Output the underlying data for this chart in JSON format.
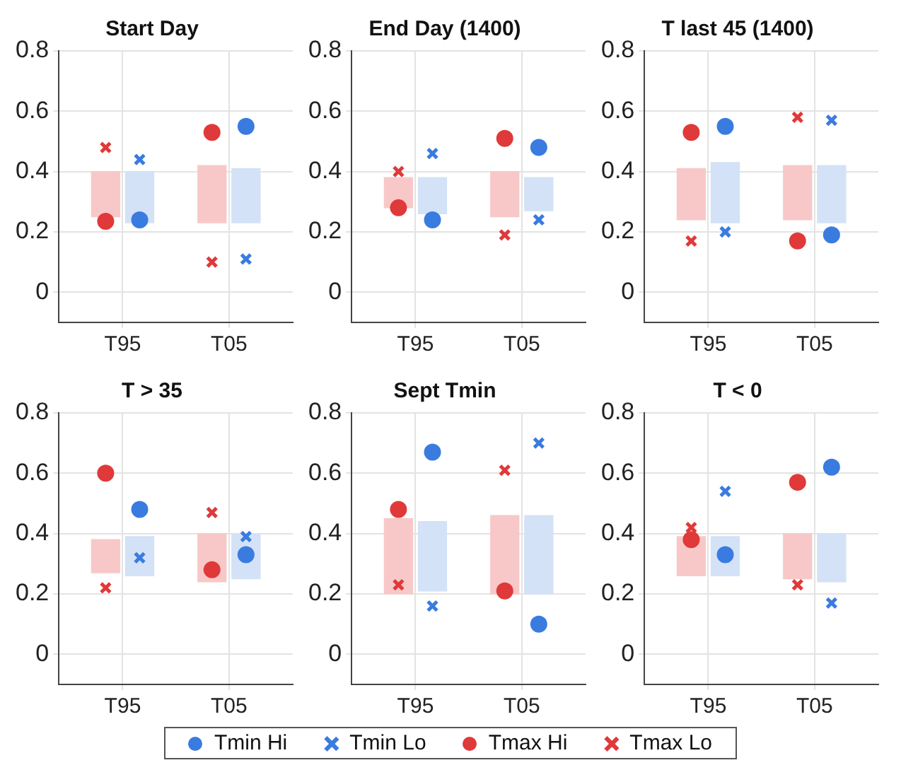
{
  "chart_data": [
    {
      "type": "bar",
      "title": "Start Day",
      "categories": [
        "T95",
        "T05"
      ],
      "ylim": [
        -0.1,
        0.8
      ],
      "yticks": [
        0,
        0.2,
        0.4,
        0.6,
        0.8
      ],
      "grid": true,
      "legend": "bottom",
      "series": [
        {
          "color": "#f8c8c8",
          "base": [
            0.25,
            0.23
          ],
          "values": [
            0.15,
            0.19
          ]
        },
        {
          "color": "#d3e2f6",
          "base": [
            0.23,
            0.23
          ],
          "values": [
            0.17,
            0.18
          ]
        },
        {
          "type": "scatter",
          "name": "Tmin Hi",
          "marker": "circle",
          "color": "#3a7be0",
          "x": [
            "T95",
            "T05"
          ],
          "values": [
            0.24,
            0.55
          ]
        },
        {
          "type": "scatter",
          "name": "Tmin Lo",
          "marker": "cross",
          "color": "#3a7be0",
          "x": [
            "T95",
            "T05"
          ],
          "values": [
            0.44,
            0.11
          ]
        },
        {
          "type": "scatter",
          "name": "Tmax Hi",
          "marker": "circle",
          "color": "#e0393a",
          "x": [
            "T95",
            "T05"
          ],
          "values": [
            0.235,
            0.53
          ]
        },
        {
          "type": "scatter",
          "name": "Tmax Lo",
          "marker": "cross",
          "color": "#e0393a",
          "x": [
            "T95",
            "T05"
          ],
          "values": [
            0.48,
            0.1
          ]
        }
      ]
    },
    {
      "type": "bar",
      "title": "End Day (1400)",
      "categories": [
        "T95",
        "T05"
      ],
      "ylim": [
        -0.1,
        0.8
      ],
      "yticks": [
        0,
        0.2,
        0.4,
        0.6,
        0.8
      ],
      "grid": true,
      "legend": "bottom",
      "series": [
        {
          "color": "#f8c8c8",
          "base": [
            0.28,
            0.25
          ],
          "values": [
            0.1,
            0.15
          ]
        },
        {
          "color": "#d3e2f6",
          "base": [
            0.26,
            0.27
          ],
          "values": [
            0.12,
            0.11
          ]
        },
        {
          "type": "scatter",
          "name": "Tmin Hi",
          "marker": "circle",
          "color": "#3a7be0",
          "x": [
            "T95",
            "T05"
          ],
          "values": [
            0.24,
            0.48
          ]
        },
        {
          "type": "scatter",
          "name": "Tmin Lo",
          "marker": "cross",
          "color": "#3a7be0",
          "x": [
            "T95",
            "T05"
          ],
          "values": [
            0.46,
            0.24
          ]
        },
        {
          "type": "scatter",
          "name": "Tmax Hi",
          "marker": "circle",
          "color": "#e0393a",
          "x": [
            "T95",
            "T05"
          ],
          "values": [
            0.28,
            0.51
          ]
        },
        {
          "type": "scatter",
          "name": "Tmax Lo",
          "marker": "cross",
          "color": "#e0393a",
          "x": [
            "T95",
            "T05"
          ],
          "values": [
            0.4,
            0.19
          ]
        }
      ]
    },
    {
      "type": "bar",
      "title": "T last 45 (1400)",
      "categories": [
        "T95",
        "T05"
      ],
      "ylim": [
        -0.1,
        0.8
      ],
      "yticks": [
        0,
        0.2,
        0.4,
        0.6,
        0.8
      ],
      "grid": true,
      "legend": "bottom",
      "series": [
        {
          "color": "#f8c8c8",
          "base": [
            0.24,
            0.24
          ],
          "values": [
            0.17,
            0.18
          ]
        },
        {
          "color": "#d3e2f6",
          "base": [
            0.23,
            0.23
          ],
          "values": [
            0.2,
            0.19
          ]
        },
        {
          "type": "scatter",
          "name": "Tmin Hi",
          "marker": "circle",
          "color": "#3a7be0",
          "x": [
            "T95",
            "T05"
          ],
          "values": [
            0.55,
            0.19
          ]
        },
        {
          "type": "scatter",
          "name": "Tmin Lo",
          "marker": "cross",
          "color": "#3a7be0",
          "x": [
            "T95",
            "T05"
          ],
          "values": [
            0.2,
            0.57
          ]
        },
        {
          "type": "scatter",
          "name": "Tmax Hi",
          "marker": "circle",
          "color": "#e0393a",
          "x": [
            "T95",
            "T05"
          ],
          "values": [
            0.53,
            0.17
          ]
        },
        {
          "type": "scatter",
          "name": "Tmax Lo",
          "marker": "cross",
          "color": "#e0393a",
          "x": [
            "T95",
            "T05"
          ],
          "values": [
            0.17,
            0.58
          ]
        }
      ]
    },
    {
      "type": "bar",
      "title": "T > 35",
      "categories": [
        "T95",
        "T05"
      ],
      "ylim": [
        -0.1,
        0.8
      ],
      "yticks": [
        0,
        0.2,
        0.4,
        0.6,
        0.8
      ],
      "grid": true,
      "legend": "bottom",
      "series": [
        {
          "color": "#f8c8c8",
          "base": [
            0.27,
            0.24
          ],
          "values": [
            0.11,
            0.16
          ]
        },
        {
          "color": "#d3e2f6",
          "base": [
            0.26,
            0.25
          ],
          "values": [
            0.13,
            0.15
          ]
        },
        {
          "type": "scatter",
          "name": "Tmin Hi",
          "marker": "circle",
          "color": "#3a7be0",
          "x": [
            "T95",
            "T05"
          ],
          "values": [
            0.48,
            0.33
          ]
        },
        {
          "type": "scatter",
          "name": "Tmin Lo",
          "marker": "cross",
          "color": "#3a7be0",
          "x": [
            "T95",
            "T05"
          ],
          "values": [
            0.32,
            0.39
          ]
        },
        {
          "type": "scatter",
          "name": "Tmax Hi",
          "marker": "circle",
          "color": "#e0393a",
          "x": [
            "T95",
            "T05"
          ],
          "values": [
            0.6,
            0.28
          ]
        },
        {
          "type": "scatter",
          "name": "Tmax Lo",
          "marker": "cross",
          "color": "#e0393a",
          "x": [
            "T95",
            "T05"
          ],
          "values": [
            0.22,
            0.47
          ]
        }
      ]
    },
    {
      "type": "bar",
      "title": "Sept Tmin",
      "categories": [
        "T95",
        "T05"
      ],
      "ylim": [
        -0.1,
        0.8
      ],
      "yticks": [
        0,
        0.2,
        0.4,
        0.6,
        0.8
      ],
      "grid": true,
      "legend": "bottom",
      "series": [
        {
          "color": "#f8c8c8",
          "base": [
            0.2,
            0.2
          ],
          "values": [
            0.25,
            0.26
          ]
        },
        {
          "color": "#d3e2f6",
          "base": [
            0.21,
            0.2
          ],
          "values": [
            0.23,
            0.26
          ]
        },
        {
          "type": "scatter",
          "name": "Tmin Hi",
          "marker": "circle",
          "color": "#3a7be0",
          "x": [
            "T95",
            "T05"
          ],
          "values": [
            0.67,
            0.1
          ]
        },
        {
          "type": "scatter",
          "name": "Tmin Lo",
          "marker": "cross",
          "color": "#3a7be0",
          "x": [
            "T95",
            "T05"
          ],
          "values": [
            0.16,
            0.7
          ]
        },
        {
          "type": "scatter",
          "name": "Tmax Hi",
          "marker": "circle",
          "color": "#e0393a",
          "x": [
            "T95",
            "T05"
          ],
          "values": [
            0.48,
            0.21
          ]
        },
        {
          "type": "scatter",
          "name": "Tmax Lo",
          "marker": "cross",
          "color": "#e0393a",
          "x": [
            "T95",
            "T05"
          ],
          "values": [
            0.23,
            0.61
          ]
        }
      ]
    },
    {
      "type": "bar",
      "title": "T < 0",
      "categories": [
        "T95",
        "T05"
      ],
      "ylim": [
        -0.1,
        0.8
      ],
      "yticks": [
        0,
        0.2,
        0.4,
        0.6,
        0.8
      ],
      "grid": true,
      "legend": "bottom",
      "series": [
        {
          "color": "#f8c8c8",
          "base": [
            0.26,
            0.25
          ],
          "values": [
            0.13,
            0.15
          ]
        },
        {
          "color": "#d3e2f6",
          "base": [
            0.26,
            0.24
          ],
          "values": [
            0.13,
            0.16
          ]
        },
        {
          "type": "scatter",
          "name": "Tmin Hi",
          "marker": "circle",
          "color": "#3a7be0",
          "x": [
            "T95",
            "T05"
          ],
          "values": [
            0.33,
            0.62
          ]
        },
        {
          "type": "scatter",
          "name": "Tmin Lo",
          "marker": "cross",
          "color": "#3a7be0",
          "x": [
            "T95",
            "T05"
          ],
          "values": [
            0.54,
            0.17
          ]
        },
        {
          "type": "scatter",
          "name": "Tmax Hi",
          "marker": "circle",
          "color": "#e0393a",
          "x": [
            "T95",
            "T05"
          ],
          "values": [
            0.38,
            0.57
          ]
        },
        {
          "type": "scatter",
          "name": "Tmax Lo",
          "marker": "cross",
          "color": "#e0393a",
          "x": [
            "T95",
            "T05"
          ],
          "values": [
            0.42,
            0.23
          ]
        }
      ]
    }
  ]
}
